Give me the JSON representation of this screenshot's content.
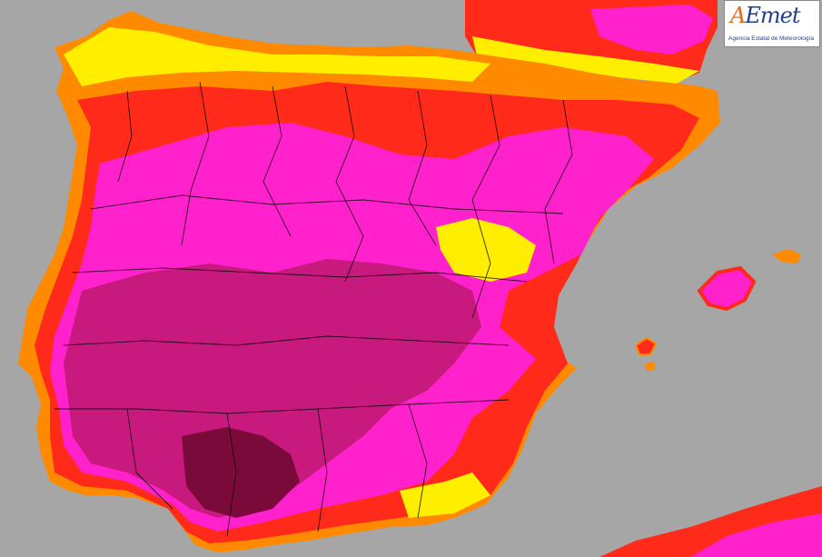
{
  "logo": {
    "name_first": "A",
    "name_rest": "Emet",
    "subtitle": "Agencia Estatal de Meteorología"
  },
  "map": {
    "region": "Iberian Peninsula and Balearic Islands",
    "type": "temperature-style raster map with province borders",
    "colors": {
      "sea": "#a6a6a6",
      "very_hot": "#7a0a3a",
      "hot_dark": "#b0145e",
      "hot": "#e0189c",
      "warm_magenta": "#ff22cc",
      "red": "#ff2a1a",
      "orange": "#ff8a00",
      "yellow": "#ffee00",
      "light_green": "#b8f060",
      "borders": "#000000"
    }
  }
}
